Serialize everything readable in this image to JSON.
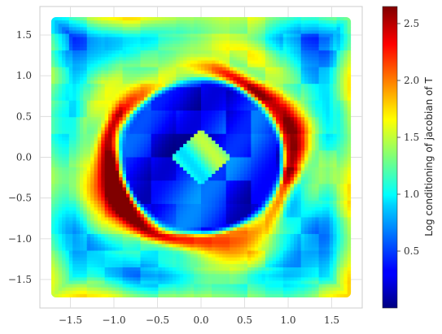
{
  "chart_data": {
    "type": "heatmap",
    "title": "",
    "xlabel": "",
    "ylabel": "",
    "xlim": [
      -1.85,
      1.85
    ],
    "ylim": [
      -1.85,
      1.85
    ],
    "x_ticks": [
      "−1.5",
      "−1.0",
      "−0.5",
      "0.0",
      "0.5",
      "1.0",
      "1.5"
    ],
    "x_tick_values": [
      -1.5,
      -1.0,
      -0.5,
      0.0,
      0.5,
      1.0,
      1.5
    ],
    "y_ticks": [
      "1.5",
      "1.0",
      "0.5",
      "0.0",
      "−0.5",
      "−1.0",
      "−1.5"
    ],
    "y_tick_values": [
      1.5,
      1.0,
      0.5,
      0.0,
      -0.5,
      -1.0,
      -1.5
    ],
    "grid": true,
    "colormap": "jet",
    "colorbar": {
      "label": "Log conditioning of jacobian of T",
      "range": [
        0.0,
        2.65
      ],
      "ticks": [
        "0.5",
        "1.0",
        "1.5",
        "2.0",
        "2.5"
      ],
      "tick_values": [
        0.5,
        1.0,
        1.5,
        2.0,
        2.5
      ]
    },
    "data_extent": [
      -1.72,
      1.72,
      -1.72,
      1.72
    ],
    "field_description_values": {
      "outer_square_edge": 1.45,
      "outer_region": 0.75,
      "ring_radius": 1.05,
      "ring_peak": 2.35,
      "disk_interior": 0.2,
      "center_triangles": 1.2
    }
  }
}
